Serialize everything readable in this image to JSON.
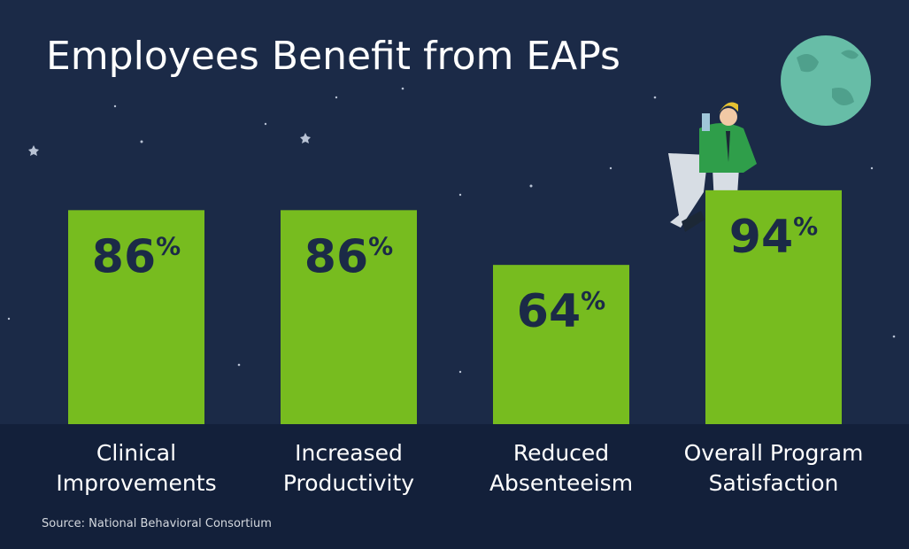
{
  "chart_data": {
    "type": "bar",
    "title": "Employees Benefit from EAPs",
    "categories": [
      "Clinical\nImprovements",
      "Increased\nProductivity",
      "Reduced\nAbsenteeism",
      "Overall Program\nSatisfaction"
    ],
    "values": [
      86,
      86,
      64,
      94
    ],
    "value_labels": [
      "86%",
      "86%",
      "64%",
      "94%"
    ],
    "color": "#77bc1f",
    "ylim": [
      0,
      100
    ],
    "source": "Source: National Behavioral Consortium"
  }
}
